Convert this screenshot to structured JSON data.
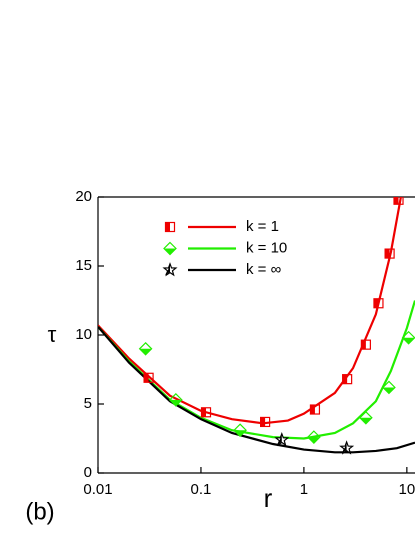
{
  "chart_data": {
    "type": "scatter",
    "panel_label": "(b)",
    "xlabel": "r",
    "ylabel": "τ",
    "xscale": "log",
    "xlim": [
      0.01,
      12
    ],
    "ylim": [
      0,
      20
    ],
    "xticks": [
      0.01,
      0.1,
      1,
      10
    ],
    "yticks": [
      0,
      5,
      10,
      15,
      20
    ],
    "legend": "upper-left",
    "series": [
      {
        "name": "k = 1",
        "color": "#ee0000",
        "marker": "square",
        "x": [
          0.031,
          0.112,
          0.42,
          1.28,
          2.63,
          4.0,
          5.3,
          6.8,
          8.3
        ],
        "values": [
          6.9,
          4.4,
          3.7,
          4.6,
          6.8,
          9.3,
          12.3,
          15.9,
          19.8
        ],
        "fit_x": [
          0.01,
          0.02,
          0.05,
          0.1,
          0.2,
          0.4,
          0.7,
          1,
          2,
          3,
          5,
          7,
          9
        ],
        "fit_values": [
          10.7,
          8.3,
          5.6,
          4.5,
          3.9,
          3.6,
          3.8,
          4.3,
          5.8,
          7.6,
          11.5,
          16,
          20.5
        ]
      },
      {
        "name": "k = 10",
        "color": "#22ee00",
        "marker": "diamond",
        "x": [
          0.029,
          0.057,
          0.24,
          1.25,
          4.0,
          6.7,
          10.4
        ],
        "values": [
          9.0,
          5.3,
          3.1,
          2.6,
          4.0,
          6.2,
          9.8
        ],
        "fit_x": [
          0.01,
          0.02,
          0.05,
          0.1,
          0.2,
          0.5,
          1,
          2,
          3,
          5,
          7,
          10,
          12
        ],
        "fit_values": [
          10.6,
          8.1,
          5.3,
          4.0,
          3.1,
          2.6,
          2.5,
          2.9,
          3.6,
          5.2,
          7.4,
          10.5,
          12.5
        ]
      },
      {
        "name": "k = ∞",
        "color": "#000000",
        "marker": "star",
        "x": [
          0.61,
          2.6
        ],
        "values": [
          2.4,
          1.8
        ],
        "fit_x": [
          0.01,
          0.02,
          0.05,
          0.1,
          0.2,
          0.5,
          1,
          2,
          3,
          5,
          8,
          12
        ],
        "fit_values": [
          10.6,
          8.0,
          5.2,
          3.9,
          2.9,
          2.1,
          1.7,
          1.5,
          1.5,
          1.6,
          1.8,
          2.2
        ]
      }
    ]
  }
}
